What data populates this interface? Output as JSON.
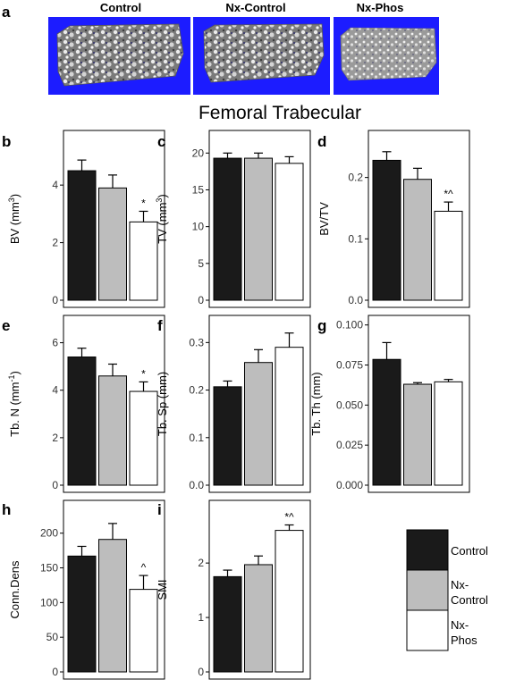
{
  "panel_a": {
    "letter": "a",
    "images": [
      {
        "label": "Control"
      },
      {
        "label": "Nx-Control"
      },
      {
        "label": "Nx-Phos"
      }
    ],
    "image_background": "#1c1cff"
  },
  "section_title": "Femoral Trabecular",
  "colors": {
    "Control": "#1a1a1a",
    "Nx-Control": "#bdbdbd",
    "Nx-Phos": "#ffffff"
  },
  "legend": {
    "entries": [
      {
        "name": "Control",
        "label_lines": [
          "Control"
        ]
      },
      {
        "name": "Nx-Control",
        "label_lines": [
          "Nx-",
          "Control"
        ]
      },
      {
        "name": "Nx-Phos",
        "label_lines": [
          "Nx-",
          "Phos"
        ]
      }
    ]
  },
  "chart_data": [
    {
      "panel": "b",
      "type": "bar",
      "ylabel": "BV (mm3)",
      "ylabel_parts": [
        "BV (mm",
        "3",
        ")"
      ],
      "categories": [
        "Control",
        "Nx-Control",
        "Nx-Phos"
      ],
      "values": [
        4.5,
        3.9,
        2.72
      ],
      "errors": [
        0.37,
        0.45,
        0.37
      ],
      "annotations": [
        "",
        "",
        "*"
      ],
      "ylim": [
        0,
        5.65
      ],
      "yticks": [
        0,
        2,
        4
      ],
      "tick_labels": [
        "0",
        "2",
        "4"
      ]
    },
    {
      "panel": "c",
      "type": "bar",
      "ylabel": "TV (mm3)",
      "ylabel_parts": [
        "TV (mm",
        "3",
        ")"
      ],
      "categories": [
        "Control",
        "Nx-Control",
        "Nx-Phos"
      ],
      "values": [
        19.3,
        19.3,
        18.6
      ],
      "errors": [
        0.7,
        0.7,
        0.9
      ],
      "annotations": [
        "",
        "",
        ""
      ],
      "ylim": [
        0,
        22.1
      ],
      "yticks": [
        0,
        5,
        10,
        15,
        20
      ],
      "tick_labels": [
        "0",
        "5",
        "10",
        "15",
        "20"
      ]
    },
    {
      "panel": "d",
      "type": "bar",
      "ylabel": "BV/TV",
      "ylabel_parts": [
        "BV/TV"
      ],
      "categories": [
        "Control",
        "Nx-Control",
        "Nx-Phos"
      ],
      "values": [
        0.228,
        0.197,
        0.145
      ],
      "errors": [
        0.014,
        0.018,
        0.015
      ],
      "annotations": [
        "",
        "",
        "*^"
      ],
      "ylim": [
        0,
        0.265
      ],
      "yticks": [
        0,
        0.1,
        0.2
      ],
      "tick_labels": [
        "0.0",
        "0.1",
        "0.2"
      ]
    },
    {
      "panel": "e",
      "type": "bar",
      "ylabel": "Tb. N (mm-1)",
      "ylabel_parts": [
        "Tb. N (mm",
        "-1",
        ")"
      ],
      "categories": [
        "Control",
        "Nx-Control",
        "Nx-Phos"
      ],
      "values": [
        5.4,
        4.6,
        3.95
      ],
      "errors": [
        0.37,
        0.5,
        0.4
      ],
      "annotations": [
        "",
        "",
        "*"
      ],
      "ylim": [
        0,
        6.85
      ],
      "yticks": [
        0,
        2,
        4,
        6
      ],
      "tick_labels": [
        "0",
        "2",
        "4",
        "6"
      ]
    },
    {
      "panel": "f",
      "type": "bar",
      "ylabel": "Tb. Sp (mm)",
      "ylabel_parts": [
        "Tb. Sp (mm)"
      ],
      "categories": [
        "Control",
        "Nx-Control",
        "Nx-Phos"
      ],
      "values": [
        0.207,
        0.258,
        0.29
      ],
      "errors": [
        0.012,
        0.027,
        0.03
      ],
      "annotations": [
        "",
        "",
        ""
      ],
      "ylim": [
        0,
        0.342
      ],
      "yticks": [
        0,
        0.1,
        0.2,
        0.3
      ],
      "tick_labels": [
        "0.0",
        "0.1",
        "0.2",
        "0.3"
      ]
    },
    {
      "panel": "g",
      "type": "bar",
      "ylabel": "Tb. Th (mm)",
      "ylabel_parts": [
        "Tb. Th (mm)"
      ],
      "categories": [
        "Control",
        "Nx-Control",
        "Nx-Phos"
      ],
      "values": [
        0.0785,
        0.063,
        0.0645
      ],
      "errors": [
        0.0105,
        0.001,
        0.0015
      ],
      "annotations": [
        "",
        "",
        ""
      ],
      "ylim": [
        0,
        0.1015
      ],
      "yticks": [
        0,
        0.025,
        0.05,
        0.075,
        0.1
      ],
      "tick_labels": [
        "0.000",
        "0.025",
        "0.050",
        "0.075",
        "0.100"
      ]
    },
    {
      "panel": "h",
      "type": "bar",
      "ylabel": "Conn.Dens",
      "ylabel_parts": [
        "Conn.Dens"
      ],
      "categories": [
        "Control",
        "Nx-Control",
        "Nx-Phos"
      ],
      "values": [
        167,
        191,
        119
      ],
      "errors": [
        14,
        23,
        20
      ],
      "annotations": [
        "",
        "",
        "^"
      ],
      "ylim": [
        0,
        237
      ],
      "yticks": [
        0,
        50,
        100,
        150,
        200
      ],
      "tick_labels": [
        "0",
        "50",
        "100",
        "150",
        "200"
      ]
    },
    {
      "panel": "i",
      "type": "bar",
      "ylabel": "SMI",
      "ylabel_parts": [
        "SMI"
      ],
      "categories": [
        "Control",
        "Nx-Control",
        "Nx-Phos"
      ],
      "values": [
        1.75,
        1.97,
        2.6
      ],
      "errors": [
        0.12,
        0.16,
        0.1
      ],
      "annotations": [
        "",
        "",
        "*^"
      ],
      "ylim": [
        0,
        3.02
      ],
      "yticks": [
        0,
        1,
        2
      ],
      "tick_labels": [
        "0",
        "1",
        "2"
      ]
    }
  ]
}
